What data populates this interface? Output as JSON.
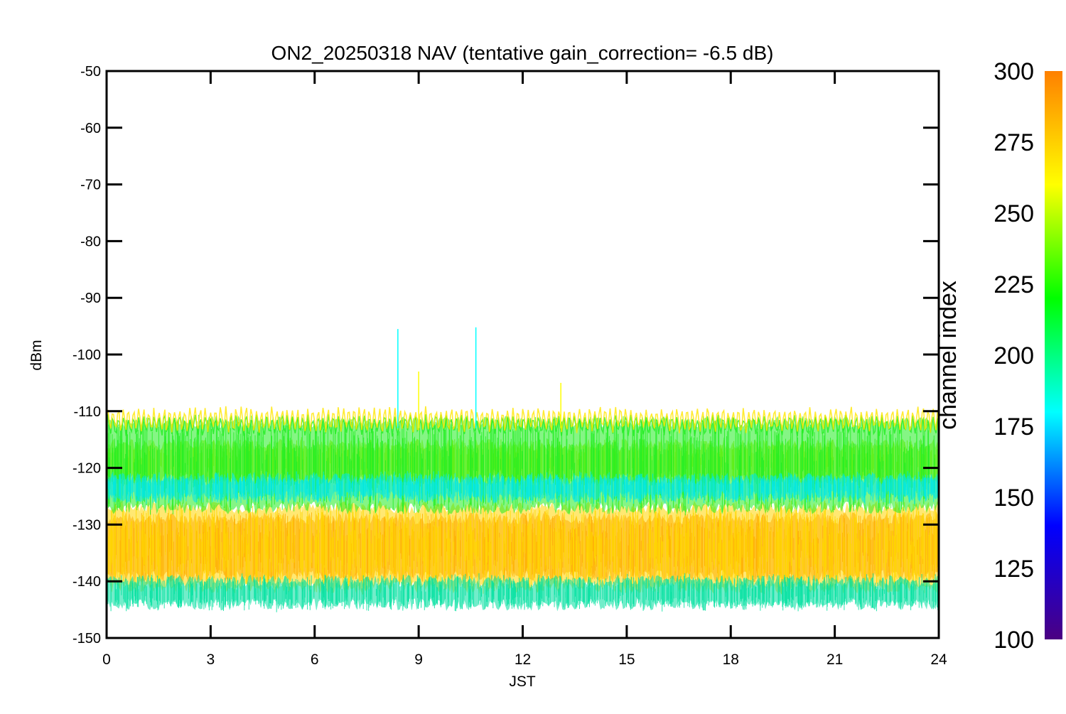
{
  "chart_data": {
    "type": "line",
    "title": "ON2_20250318 NAV (tentative gain_correction= -6.5 dB)",
    "xlabel": "JST",
    "ylabel": "dBm",
    "xlim": [
      0,
      24
    ],
    "ylim": [
      -150,
      -50
    ],
    "xticks": [
      0,
      3,
      6,
      9,
      12,
      15,
      18,
      21,
      24
    ],
    "yticks": [
      -50,
      -60,
      -70,
      -80,
      -90,
      -100,
      -110,
      -120,
      -130,
      -140,
      -150
    ],
    "grid": false,
    "colorbar": {
      "label": "channel index",
      "range": [
        100,
        300
      ],
      "ticks": [
        300,
        275,
        250,
        225,
        200,
        175,
        150,
        125,
        100
      ],
      "colormap": [
        "#4b0082",
        "#0000ff",
        "#00ffff",
        "#00ff00",
        "#ffff00",
        "#ff8000"
      ]
    },
    "bands": [
      {
        "channel": 290,
        "color": "#ff8000",
        "low": -139,
        "high": -129
      },
      {
        "channel": 270,
        "color": "#ffd700",
        "low": -141,
        "high": -127
      },
      {
        "channel": 255,
        "color": "#a6f000",
        "low": -122,
        "high": -116
      },
      {
        "channel": 235,
        "color": "#22ee22",
        "low": -127,
        "high": -112
      },
      {
        "channel": 200,
        "color": "#00e0a0",
        "low": -144,
        "high": -140
      },
      {
        "channel": 180,
        "color": "#00e8e8",
        "low": -125,
        "high": -122
      }
    ],
    "events": [
      {
        "x": 8.4,
        "y": -95.5,
        "channel": 195
      },
      {
        "x": 10.65,
        "y": -95.2,
        "channel": 185
      },
      {
        "x": 9.0,
        "y": -103,
        "channel": 240
      },
      {
        "x": 13.1,
        "y": -105,
        "channel": 268
      }
    ]
  }
}
